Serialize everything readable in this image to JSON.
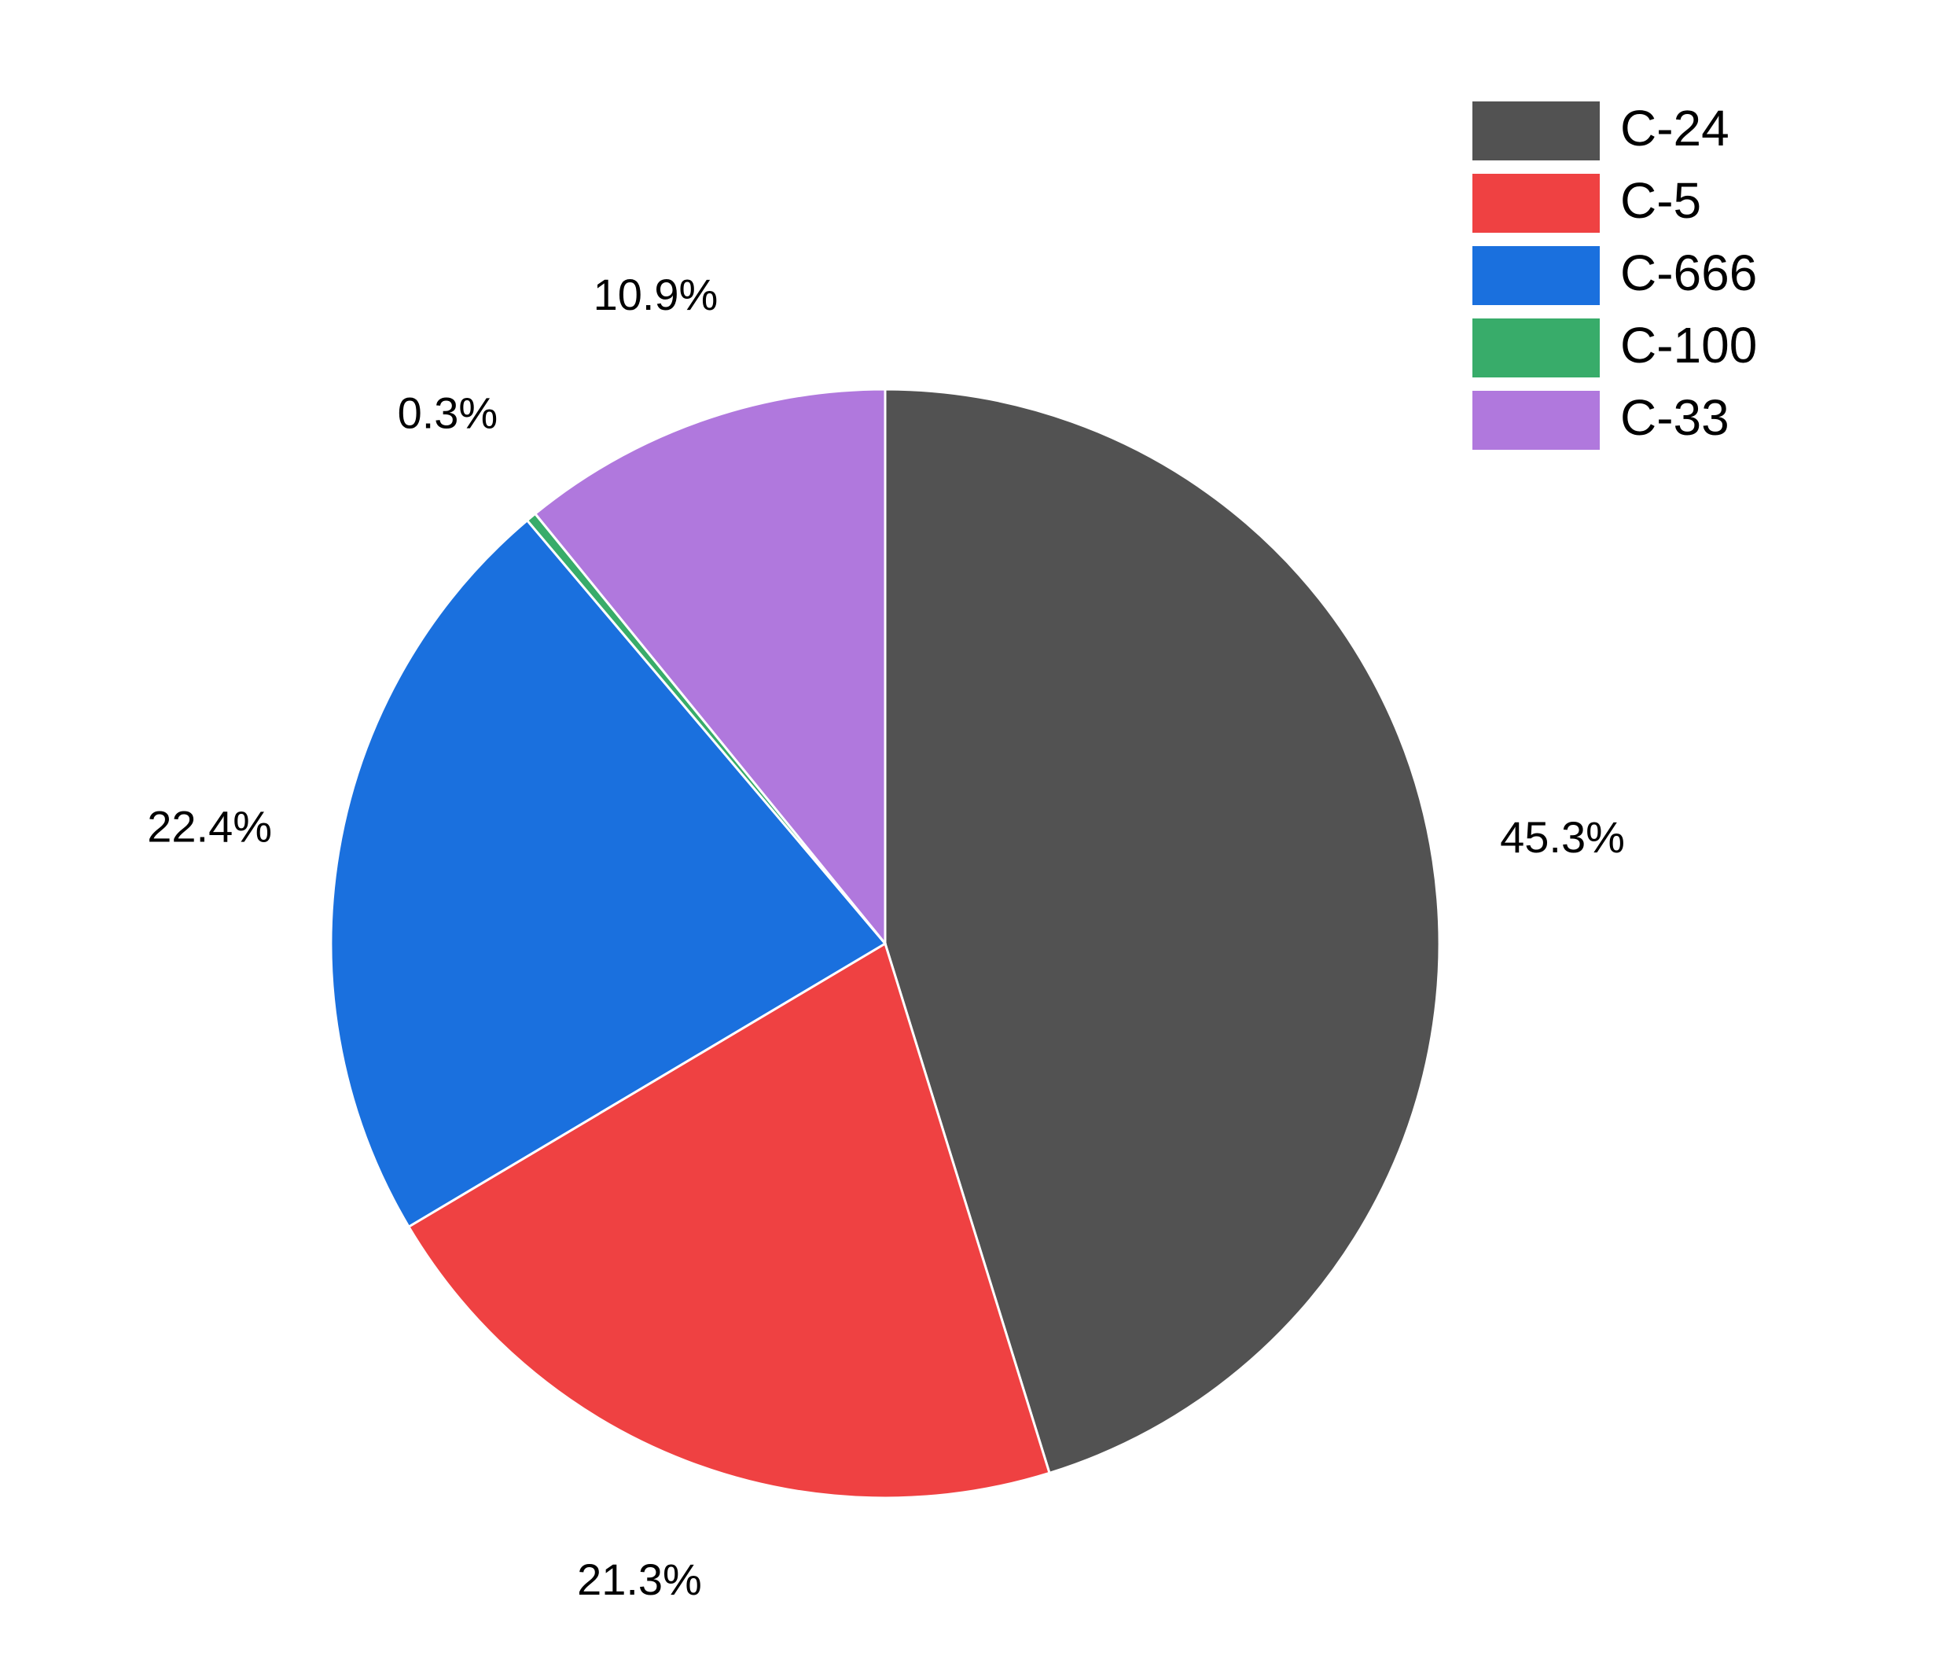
{
  "chart_data": {
    "type": "pie",
    "categories": [
      "C-24",
      "C-5",
      "C-666",
      "C-100",
      "C-33"
    ],
    "values": [
      45.3,
      21.3,
      22.4,
      0.3,
      10.9
    ],
    "value_labels": [
      "45.3%",
      "21.3%",
      "22.4%",
      "0.3%",
      "10.9%"
    ],
    "colors": [
      "#525252",
      "#ef4142",
      "#1a70de",
      "#38ac6a",
      "#b078dd"
    ],
    "start": "top",
    "direction": "clockwise",
    "legend": "upper right"
  }
}
